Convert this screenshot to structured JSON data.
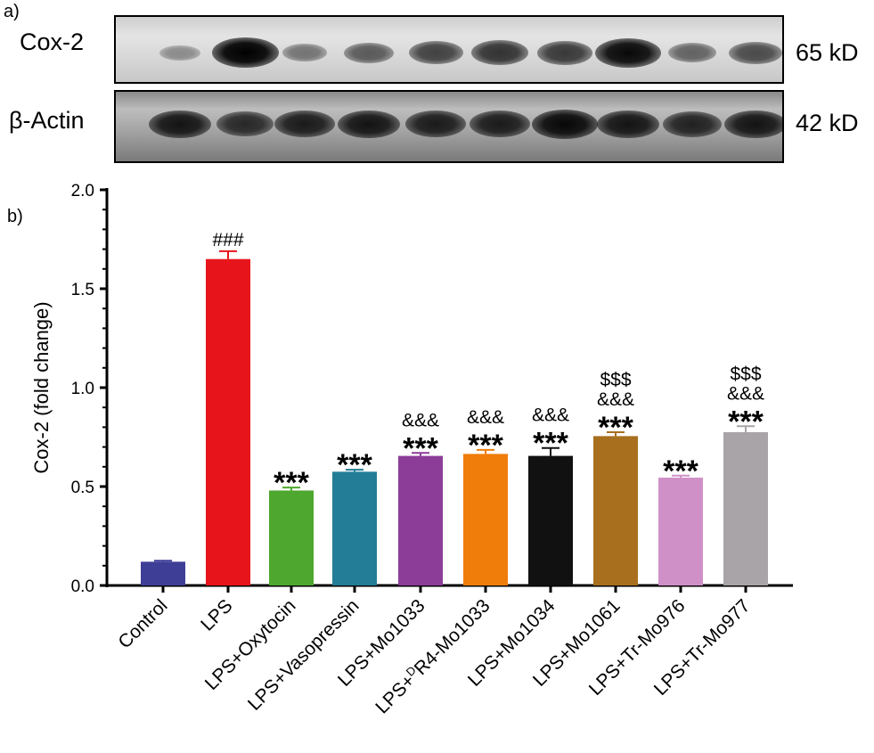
{
  "panels": {
    "a": "a)",
    "b": "b)"
  },
  "blots": [
    {
      "protein": "Cox-2",
      "size": "65 kD",
      "intensities": [
        0.15,
        1.0,
        0.3,
        0.45,
        0.6,
        0.7,
        0.65,
        0.95,
        0.4,
        0.55
      ]
    },
    {
      "protein": "β-Actin",
      "size": "42 kD",
      "intensities": [
        0.85,
        0.7,
        0.8,
        0.85,
        0.8,
        0.8,
        0.95,
        0.85,
        0.75,
        0.85
      ]
    }
  ],
  "chart_data": {
    "type": "bar",
    "ylabel": "Cox-2 (fold change)",
    "xlabel": "",
    "ylim": [
      0,
      2.0
    ],
    "yticks": [
      "0.0",
      "0.5",
      "1.0",
      "1.5",
      "2.0"
    ],
    "categories": [
      "Control",
      "LPS",
      "LPS+Oxytocin",
      "LPS+Vasopressin",
      "LPS+Mo1033",
      "LPS+DR4-Mo1033",
      "LPS+Mo1034",
      "LPS+Mo1061",
      "LPS+Tr-Mo976",
      "LPS+Tr-Mo977"
    ],
    "values": [
      0.12,
      1.65,
      0.48,
      0.575,
      0.655,
      0.665,
      0.655,
      0.755,
      0.545,
      0.775
    ],
    "errors": [
      0.005,
      0.04,
      0.015,
      0.01,
      0.015,
      0.02,
      0.04,
      0.02,
      0.01,
      0.03
    ],
    "colors": [
      "#3e3e96",
      "#e8141c",
      "#4ea72e",
      "#237d96",
      "#8c3d98",
      "#f07d0a",
      "#111111",
      "#a86f1e",
      "#cf90c8",
      "#a9a4a8"
    ],
    "significance": [
      [],
      [
        "###"
      ],
      [
        "***"
      ],
      [
        "***"
      ],
      [
        "&&&",
        "***"
      ],
      [
        "&&&",
        "***"
      ],
      [
        "&&&",
        "***"
      ],
      [
        "$$$",
        "&&&",
        "***"
      ],
      [
        "***"
      ],
      [
        "$$$",
        "&&&",
        "***"
      ]
    ]
  }
}
